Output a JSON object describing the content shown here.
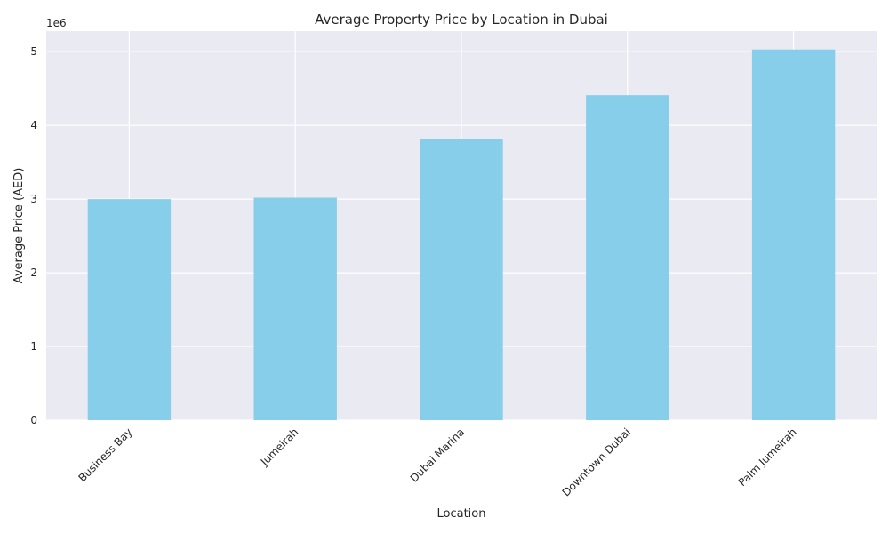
{
  "chart_data": {
    "type": "bar",
    "title": "Average Property Price by Location in Dubai",
    "xlabel": "Location",
    "ylabel": "Average Price (AED)",
    "y_offset_label": "1e6",
    "categories": [
      "Business Bay",
      "Jumeirah",
      "Dubai Marina",
      "Downtown Dubai",
      "Palm Jumeirah"
    ],
    "values": [
      3000000,
      3020000,
      3820000,
      4410000,
      5030000
    ],
    "ylim": [
      0,
      5280000
    ],
    "y_ticks": [
      0,
      1000000,
      2000000,
      3000000,
      4000000,
      5000000
    ],
    "y_tick_labels": [
      "0",
      "1",
      "2",
      "3",
      "4",
      "5"
    ],
    "x_tick_rotation": "45 degrees",
    "grid": true,
    "legend": "none",
    "colors": {
      "bar": "#87ceeb",
      "plot_background": "#eaeaf2",
      "grid": "#ffffff",
      "text": "#262626"
    }
  }
}
